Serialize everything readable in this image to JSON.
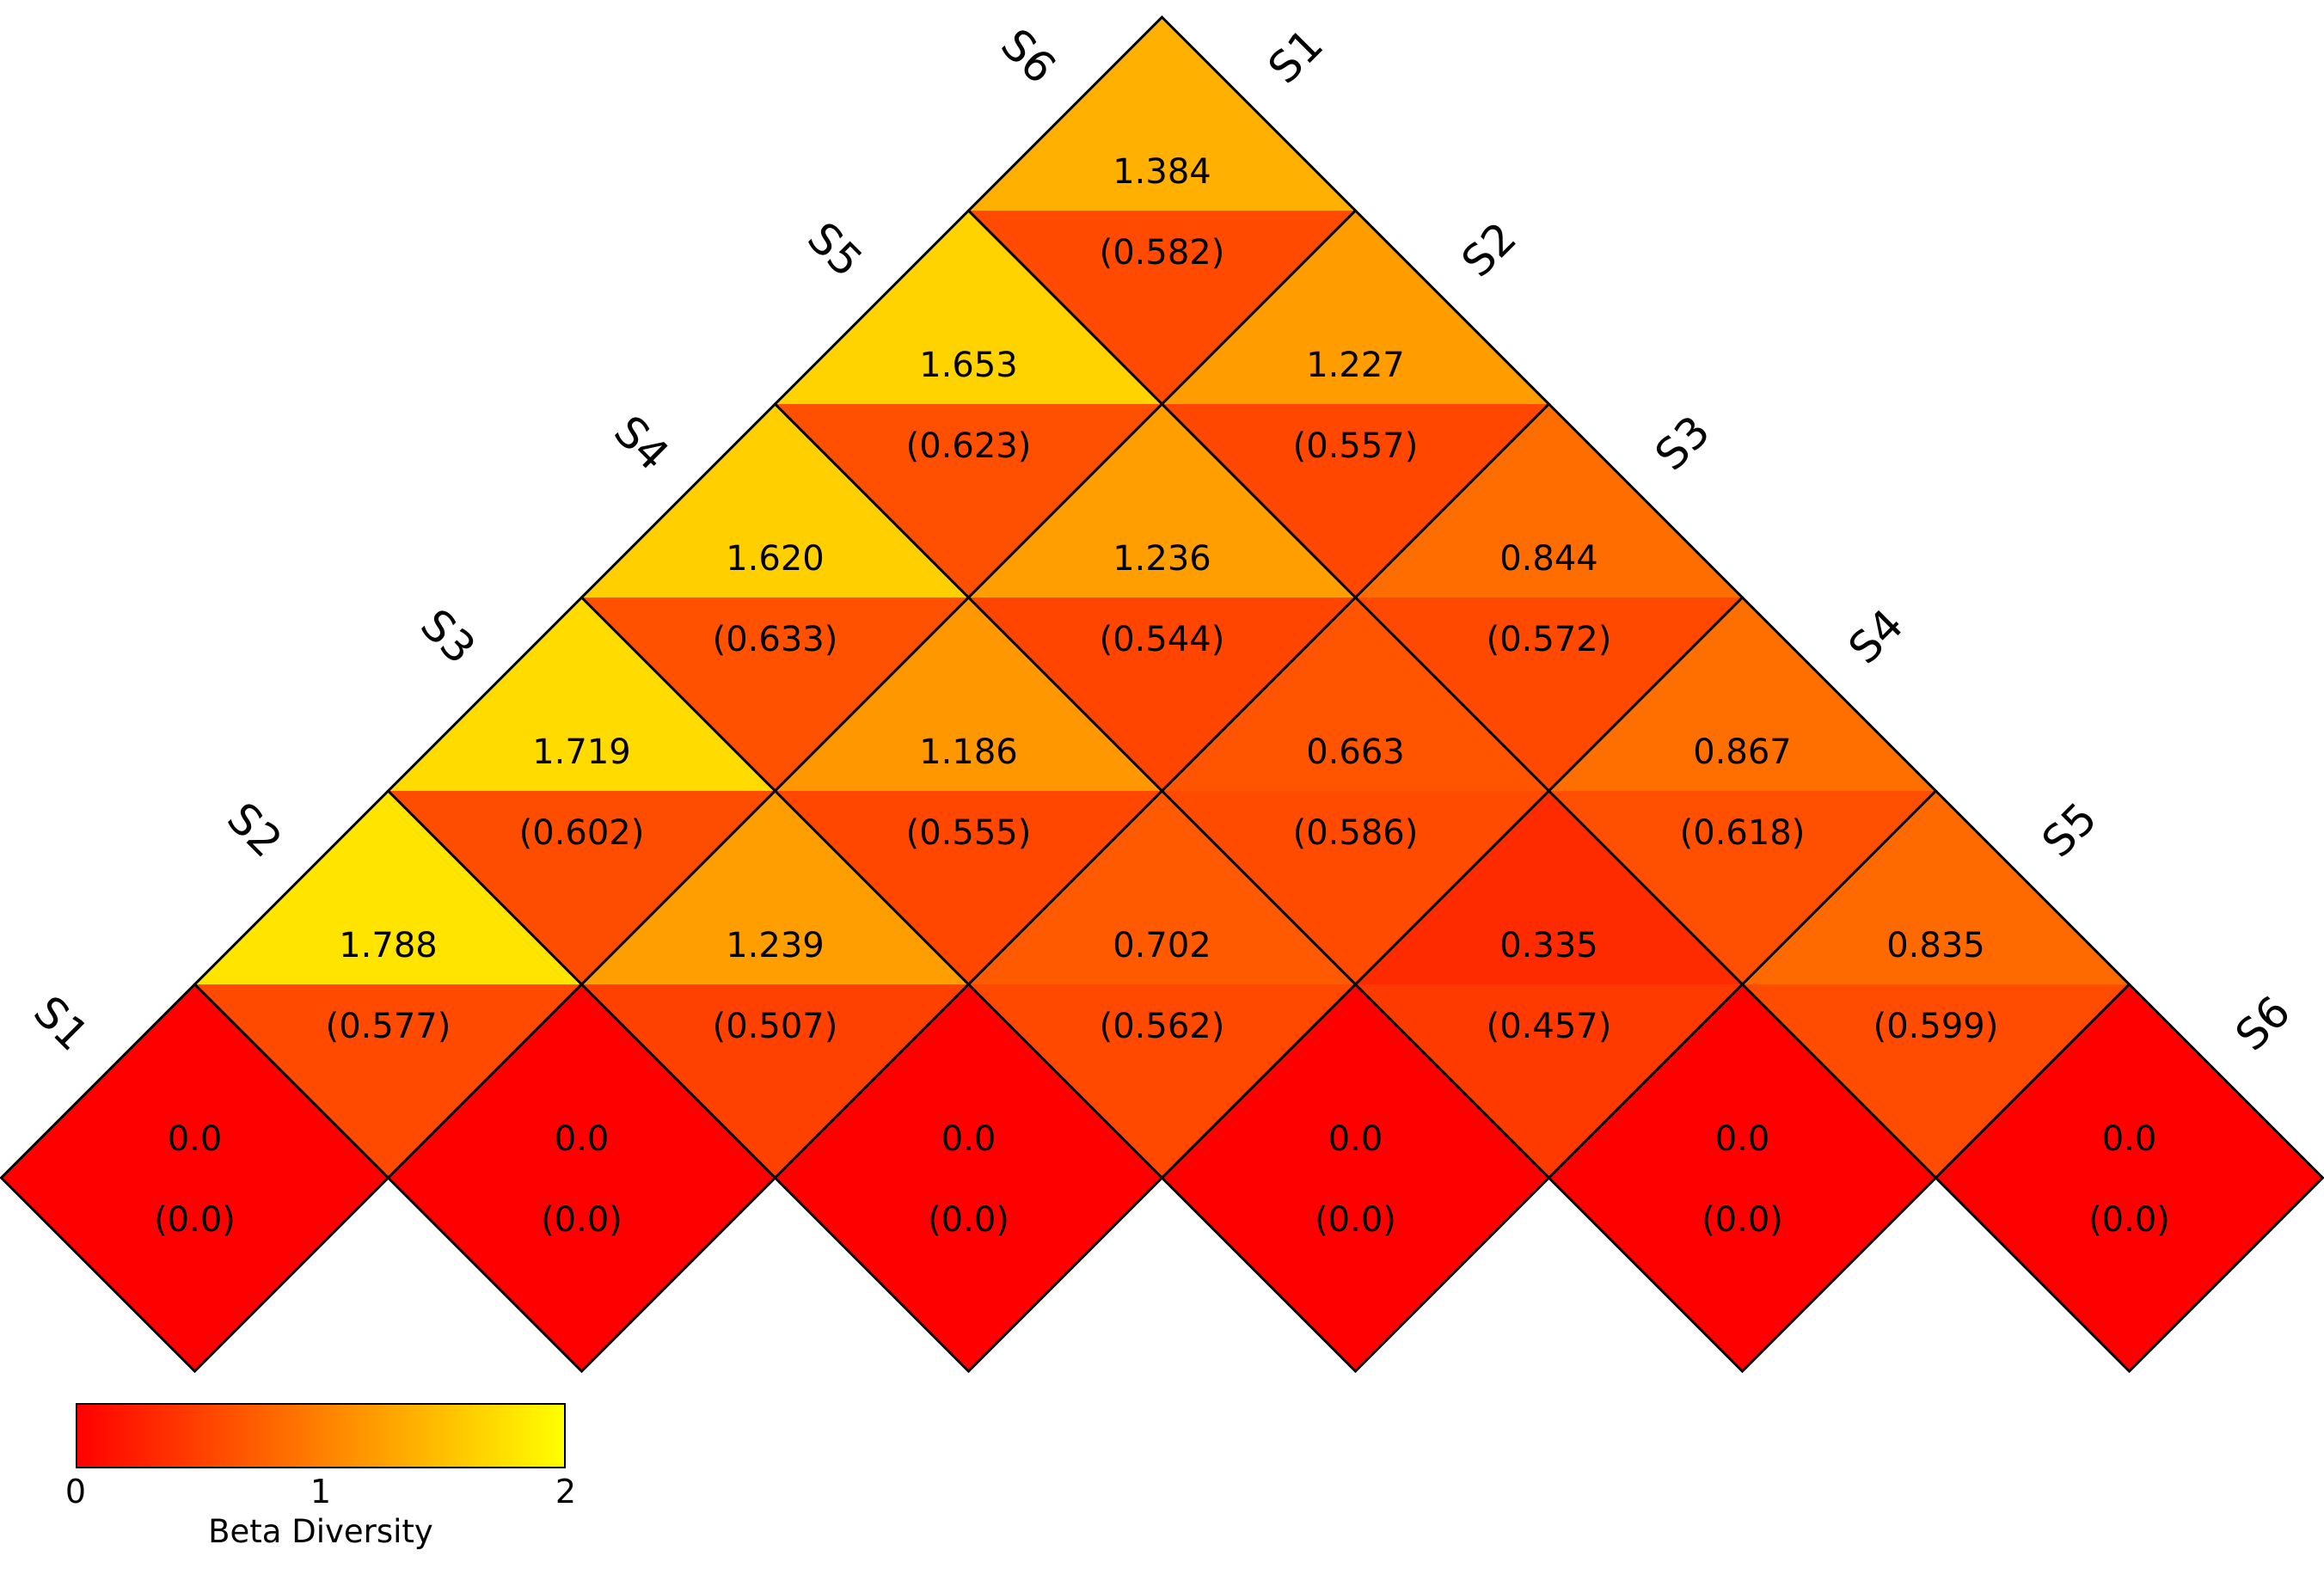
{
  "figure": {
    "background_color": "#ffffff",
    "cell_border_color": "#000000",
    "text_color": "#000000"
  },
  "chart_data": {
    "type": "heatmap",
    "variant": "pairwise-triangle",
    "title": "",
    "samples": [
      "S1",
      "S2",
      "S3",
      "S4",
      "S5",
      "S6"
    ],
    "cells": [
      {
        "a": "S1",
        "b": "S6",
        "value": 1.384,
        "secondary": 0.582,
        "label": "1.384",
        "secondary_label": "(0.582)"
      },
      {
        "a": "S1",
        "b": "S5",
        "value": 1.653,
        "secondary": 0.623,
        "label": "1.653",
        "secondary_label": "(0.623)"
      },
      {
        "a": "S2",
        "b": "S6",
        "value": 1.227,
        "secondary": 0.557,
        "label": "1.227",
        "secondary_label": "(0.557)"
      },
      {
        "a": "S1",
        "b": "S4",
        "value": 1.62,
        "secondary": 0.633,
        "label": "1.620",
        "secondary_label": "(0.633)"
      },
      {
        "a": "S2",
        "b": "S5",
        "value": 1.236,
        "secondary": 0.544,
        "label": "1.236",
        "secondary_label": "(0.544)"
      },
      {
        "a": "S3",
        "b": "S6",
        "value": 0.844,
        "secondary": 0.572,
        "label": "0.844",
        "secondary_label": "(0.572)"
      },
      {
        "a": "S1",
        "b": "S3",
        "value": 1.719,
        "secondary": 0.602,
        "label": "1.719",
        "secondary_label": "(0.602)"
      },
      {
        "a": "S2",
        "b": "S4",
        "value": 1.186,
        "secondary": 0.555,
        "label": "1.186",
        "secondary_label": "(0.555)"
      },
      {
        "a": "S3",
        "b": "S5",
        "value": 0.663,
        "secondary": 0.586,
        "label": "0.663",
        "secondary_label": "(0.586)"
      },
      {
        "a": "S4",
        "b": "S6",
        "value": 0.867,
        "secondary": 0.618,
        "label": "0.867",
        "secondary_label": "(0.618)"
      },
      {
        "a": "S1",
        "b": "S2",
        "value": 1.788,
        "secondary": 0.577,
        "label": "1.788",
        "secondary_label": "(0.577)"
      },
      {
        "a": "S2",
        "b": "S3",
        "value": 1.239,
        "secondary": 0.507,
        "label": "1.239",
        "secondary_label": "(0.507)"
      },
      {
        "a": "S3",
        "b": "S4",
        "value": 0.702,
        "secondary": 0.562,
        "label": "0.702",
        "secondary_label": "(0.562)"
      },
      {
        "a": "S4",
        "b": "S5",
        "value": 0.335,
        "secondary": 0.457,
        "label": "0.335",
        "secondary_label": "(0.457)"
      },
      {
        "a": "S5",
        "b": "S6",
        "value": 0.835,
        "secondary": 0.599,
        "label": "0.835",
        "secondary_label": "(0.599)"
      },
      {
        "a": "S1",
        "b": "S1",
        "value": 0.0,
        "secondary": 0.0,
        "label": "0.0",
        "secondary_label": "(0.0)"
      },
      {
        "a": "S2",
        "b": "S2",
        "value": 0.0,
        "secondary": 0.0,
        "label": "0.0",
        "secondary_label": "(0.0)"
      },
      {
        "a": "S3",
        "b": "S3",
        "value": 0.0,
        "secondary": 0.0,
        "label": "0.0",
        "secondary_label": "(0.0)"
      },
      {
        "a": "S4",
        "b": "S4",
        "value": 0.0,
        "secondary": 0.0,
        "label": "0.0",
        "secondary_label": "(0.0)"
      },
      {
        "a": "S5",
        "b": "S5",
        "value": 0.0,
        "secondary": 0.0,
        "label": "0.0",
        "secondary_label": "(0.0)"
      },
      {
        "a": "S6",
        "b": "S6",
        "value": 0.0,
        "secondary": 0.0,
        "label": "0.0",
        "secondary_label": "(0.0)"
      }
    ],
    "colorbar": {
      "min": 0,
      "max": 2,
      "tick_labels": [
        "0",
        "1",
        "2"
      ],
      "label": "Beta Diversity",
      "gradient": [
        "#ff0000",
        "#ff8000",
        "#ffff00"
      ],
      "position": "bottom-left"
    }
  }
}
